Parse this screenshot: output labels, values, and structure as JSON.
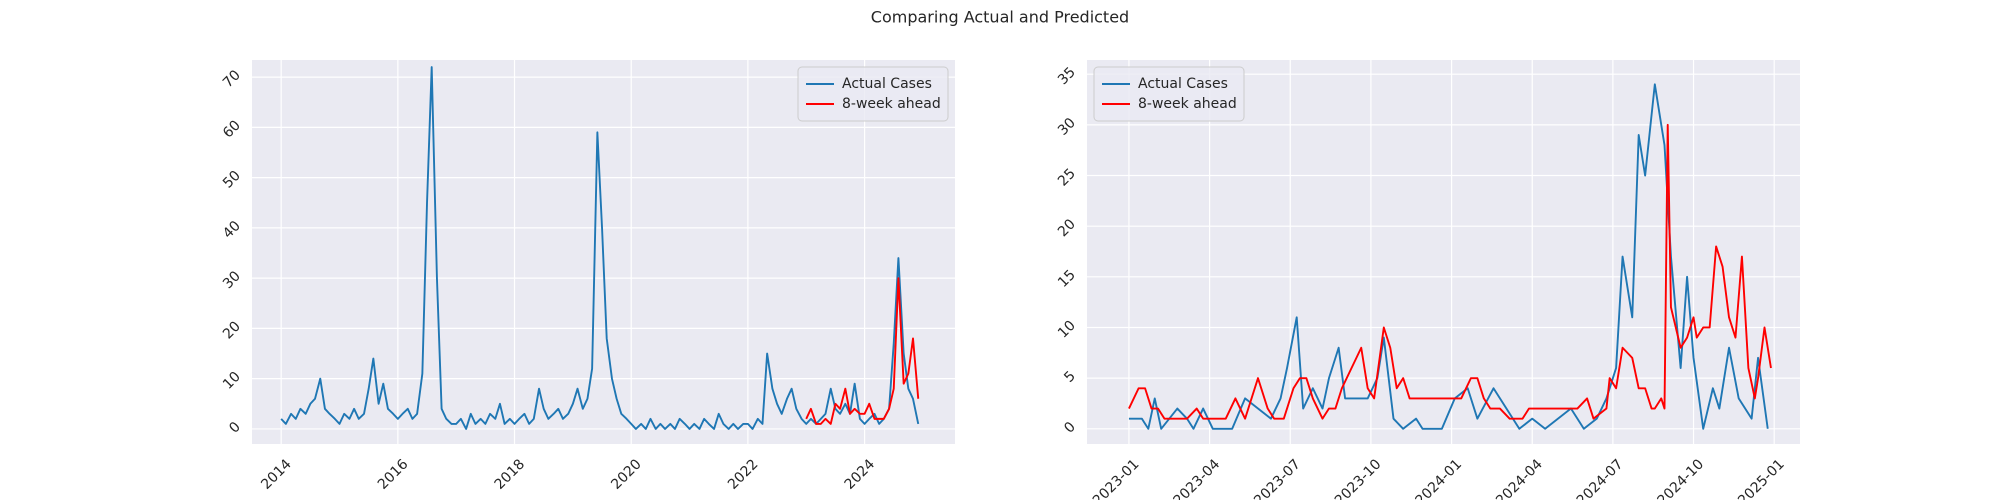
{
  "title": "Comparing Actual and Predicted",
  "chart_data": [
    {
      "type": "line",
      "grid": true,
      "legend": "upper right",
      "xlim": [
        2013.5,
        2025.55
      ],
      "xticks": [
        2014,
        2016,
        2018,
        2020,
        2022,
        2024
      ],
      "ylim": [
        -3,
        73.4
      ],
      "yticks": [
        0,
        10,
        20,
        30,
        40,
        50,
        60,
        70
      ],
      "series": [
        {
          "name": "Actual Cases",
          "color": "#1f77b4",
          "x": [
            2014,
            2014.08,
            2014.17,
            2014.25,
            2014.33,
            2014.42,
            2014.5,
            2014.58,
            2014.67,
            2014.75,
            2014.83,
            2014.92,
            2015,
            2015.08,
            2015.17,
            2015.25,
            2015.33,
            2015.42,
            2015.5,
            2015.58,
            2015.67,
            2015.75,
            2015.83,
            2015.92,
            2016,
            2016.08,
            2016.17,
            2016.25,
            2016.33,
            2016.42,
            2016.5,
            2016.58,
            2016.67,
            2016.75,
            2016.83,
            2016.92,
            2017,
            2017.08,
            2017.17,
            2017.25,
            2017.33,
            2017.42,
            2017.5,
            2017.58,
            2017.67,
            2017.75,
            2017.83,
            2017.92,
            2018,
            2018.08,
            2018.17,
            2018.25,
            2018.33,
            2018.42,
            2018.5,
            2018.58,
            2018.67,
            2018.75,
            2018.83,
            2018.92,
            2019,
            2019.08,
            2019.17,
            2019.25,
            2019.33,
            2019.42,
            2019.5,
            2019.58,
            2019.67,
            2019.75,
            2019.83,
            2019.92,
            2020,
            2020.08,
            2020.17,
            2020.25,
            2020.33,
            2020.42,
            2020.5,
            2020.58,
            2020.67,
            2020.75,
            2020.83,
            2020.92,
            2021,
            2021.08,
            2021.17,
            2021.25,
            2021.33,
            2021.42,
            2021.5,
            2021.58,
            2021.67,
            2021.75,
            2021.83,
            2021.92,
            2022,
            2022.08,
            2022.17,
            2022.25,
            2022.33,
            2022.42,
            2022.5,
            2022.58,
            2022.67,
            2022.75,
            2022.83,
            2022.92,
            2023,
            2023.08,
            2023.17,
            2023.25,
            2023.33,
            2023.42,
            2023.5,
            2023.58,
            2023.67,
            2023.75,
            2023.83,
            2023.92,
            2024,
            2024.08,
            2024.17,
            2024.25,
            2024.33,
            2024.42,
            2024.5,
            2024.58,
            2024.67,
            2024.75,
            2024.83,
            2024.92
          ],
          "values": [
            2,
            1,
            3,
            2,
            4,
            3,
            5,
            6,
            10,
            4,
            3,
            2,
            1,
            3,
            2,
            4,
            2,
            3,
            8,
            14,
            5,
            9,
            4,
            3,
            2,
            3,
            4,
            2,
            3,
            11,
            45,
            72,
            30,
            4,
            2,
            1,
            1,
            2,
            0,
            3,
            1,
            2,
            1,
            3,
            2,
            5,
            1,
            2,
            1,
            2,
            3,
            1,
            2,
            8,
            4,
            2,
            3,
            4,
            2,
            3,
            5,
            8,
            4,
            6,
            12,
            59,
            40,
            18,
            10,
            6,
            3,
            2,
            1,
            0,
            1,
            0,
            2,
            0,
            1,
            0,
            1,
            0,
            2,
            1,
            0,
            1,
            0,
            2,
            1,
            0,
            3,
            1,
            0,
            1,
            0,
            1,
            1,
            0,
            2,
            1,
            15,
            8,
            5,
            3,
            6,
            8,
            4,
            2,
            1,
            2,
            1,
            2,
            3,
            8,
            4,
            3,
            5,
            3,
            9,
            2,
            1,
            2,
            3,
            1,
            2,
            4,
            17,
            34,
            15,
            8,
            6,
            1
          ]
        },
        {
          "name": "8-week ahead",
          "color": "red",
          "x": [
            2023,
            2023.08,
            2023.17,
            2023.25,
            2023.33,
            2023.42,
            2023.5,
            2023.58,
            2023.67,
            2023.75,
            2023.83,
            2023.92,
            2024,
            2024.08,
            2024.17,
            2024.25,
            2024.33,
            2024.42,
            2024.5,
            2024.58,
            2024.67,
            2024.75,
            2024.83,
            2024.92
          ],
          "values": [
            2,
            4,
            1,
            1,
            2,
            1,
            5,
            4,
            8,
            3,
            4,
            3,
            3,
            5,
            2,
            2,
            2,
            4,
            8,
            30,
            9,
            11,
            18,
            6
          ]
        }
      ]
    },
    {
      "type": "line",
      "grid": true,
      "legend": "upper left",
      "xlim": [
        2022.87,
        2025.08
      ],
      "xticks": [
        {
          "value": 2023,
          "label": "2023-01"
        },
        {
          "value": 2023.25,
          "label": "2023-04"
        },
        {
          "value": 2023.5,
          "label": "2023-07"
        },
        {
          "value": 2023.75,
          "label": "2023-10"
        },
        {
          "value": 2024,
          "label": "2024-01"
        },
        {
          "value": 2024.25,
          "label": "2024-04"
        },
        {
          "value": 2024.5,
          "label": "2024-07"
        },
        {
          "value": 2024.75,
          "label": "2024-10"
        },
        {
          "value": 2025,
          "label": "2025-01"
        }
      ],
      "ylim": [
        -1.5,
        36.4
      ],
      "yticks": [
        0,
        5,
        10,
        15,
        20,
        25,
        30,
        35
      ],
      "series": [
        {
          "name": "Actual Cases",
          "color": "#1f77b4",
          "x": [
            2023,
            2023.04,
            2023.06,
            2023.08,
            2023.1,
            2023.15,
            2023.18,
            2023.2,
            2023.23,
            2023.26,
            2023.32,
            2023.36,
            2023.4,
            2023.44,
            2023.47,
            2023.49,
            2023.52,
            2023.54,
            2023.57,
            2023.6,
            2023.62,
            2023.65,
            2023.67,
            2023.74,
            2023.77,
            2023.79,
            2023.82,
            2023.85,
            2023.89,
            2023.91,
            2023.97,
            2024.01,
            2024.05,
            2024.08,
            2024.13,
            2024.17,
            2024.21,
            2024.25,
            2024.29,
            2024.33,
            2024.37,
            2024.41,
            2024.45,
            2024.48,
            2024.51,
            2024.53,
            2024.56,
            2024.58,
            2024.6,
            2024.63,
            2024.66,
            2024.68,
            2024.71,
            2024.73,
            2024.75,
            2024.78,
            2024.81,
            2024.83,
            2024.86,
            2024.89,
            2024.93,
            2024.95,
            2024.98
          ],
          "values": [
            1,
            1,
            0,
            3,
            0,
            2,
            1,
            0,
            2,
            0,
            0,
            3,
            2,
            1,
            3,
            6,
            11,
            2,
            4,
            2,
            5,
            8,
            3,
            3,
            5,
            9,
            1,
            0,
            1,
            0,
            0,
            3,
            4,
            1,
            4,
            2,
            0,
            1,
            0,
            1,
            2,
            0,
            1,
            3,
            6,
            17,
            11,
            29,
            25,
            34,
            28,
            17,
            6,
            15,
            7,
            0,
            4,
            2,
            8,
            3,
            1,
            7,
            0
          ]
        },
        {
          "name": "8-week ahead",
          "color": "red",
          "x": [
            2023,
            2023.03,
            2023.05,
            2023.07,
            2023.09,
            2023.11,
            2023.18,
            2023.21,
            2023.23,
            2023.3,
            2023.33,
            2023.36,
            2023.4,
            2023.43,
            2023.45,
            2023.48,
            2023.51,
            2023.53,
            2023.55,
            2023.57,
            2023.6,
            2023.62,
            2023.64,
            2023.66,
            2023.69,
            2023.72,
            2023.74,
            2023.76,
            2023.79,
            2023.81,
            2023.83,
            2023.85,
            2023.87,
            2024.03,
            2024.06,
            2024.08,
            2024.1,
            2024.12,
            2024.15,
            2024.18,
            2024.22,
            2024.24,
            2024.39,
            2024.42,
            2024.44,
            2024.48,
            2024.49,
            2024.51,
            2024.53,
            2024.56,
            2024.58,
            2024.6,
            2024.62,
            2024.63,
            2024.65,
            2024.66,
            2024.67,
            2024.68,
            2024.71,
            2024.73,
            2024.75,
            2024.76,
            2024.78,
            2024.8,
            2024.82,
            2024.84,
            2024.86,
            2024.88,
            2024.9,
            2024.92,
            2024.94,
            2024.95,
            2024.97,
            2024.99
          ],
          "values": [
            2,
            4,
            4,
            2,
            2,
            1,
            1,
            2,
            1,
            1,
            3,
            1,
            5,
            2,
            1,
            1,
            4,
            5,
            5,
            3,
            1,
            2,
            2,
            4,
            6,
            8,
            4,
            3,
            10,
            8,
            4,
            5,
            3,
            3,
            5,
            5,
            3,
            2,
            2,
            1,
            1,
            2,
            2,
            3,
            1,
            2,
            5,
            4,
            8,
            7,
            4,
            4,
            2,
            2,
            3,
            2,
            30,
            12,
            8,
            9,
            11,
            9,
            10,
            10,
            18,
            16,
            11,
            9,
            17,
            6,
            3,
            5,
            10,
            6
          ]
        }
      ]
    }
  ]
}
